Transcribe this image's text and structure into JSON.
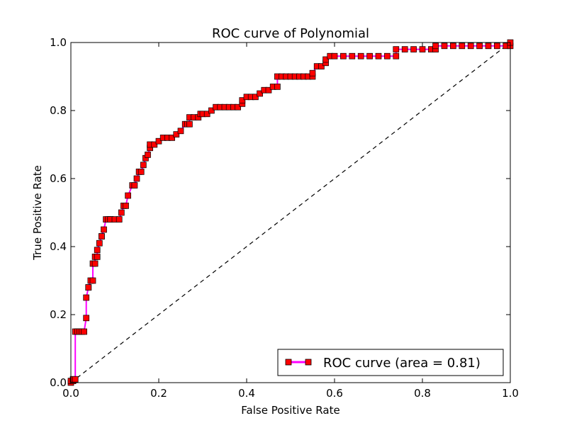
{
  "chart_data": {
    "type": "line",
    "title": "ROC curve of Polynomial",
    "xlabel": "False Positive Rate",
    "ylabel": "True Positive Rate",
    "xlim": [
      0.0,
      1.0
    ],
    "ylim": [
      0.0,
      1.0
    ],
    "xticks": [
      "0.0",
      "0.2",
      "0.4",
      "0.6",
      "0.8",
      "1.0"
    ],
    "yticks": [
      "0.0",
      "0.2",
      "0.4",
      "0.6",
      "0.8",
      "1.0"
    ],
    "grid": false,
    "legend_position": "lower-right",
    "series": [
      {
        "name": "ROC curve (area = 0.81)",
        "line_color": "#ff00ff",
        "marker": "square",
        "marker_color": "#ff0000",
        "x": [
          0.0,
          0.0,
          0.005,
          0.005,
          0.01,
          0.01,
          0.015,
          0.015,
          0.02,
          0.025,
          0.03,
          0.035,
          0.035,
          0.04,
          0.04,
          0.045,
          0.05,
          0.05,
          0.055,
          0.055,
          0.06,
          0.06,
          0.065,
          0.07,
          0.07,
          0.075,
          0.08,
          0.085,
          0.09,
          0.09,
          0.1,
          0.11,
          0.115,
          0.12,
          0.125,
          0.13,
          0.14,
          0.145,
          0.15,
          0.155,
          0.16,
          0.165,
          0.17,
          0.175,
          0.18,
          0.18,
          0.19,
          0.2,
          0.21,
          0.22,
          0.23,
          0.24,
          0.25,
          0.26,
          0.265,
          0.27,
          0.27,
          0.28,
          0.29,
          0.295,
          0.3,
          0.31,
          0.32,
          0.33,
          0.34,
          0.35,
          0.36,
          0.37,
          0.38,
          0.39,
          0.39,
          0.4,
          0.41,
          0.42,
          0.43,
          0.44,
          0.45,
          0.46,
          0.47,
          0.47,
          0.48,
          0.49,
          0.5,
          0.51,
          0.52,
          0.53,
          0.54,
          0.55,
          0.55,
          0.56,
          0.57,
          0.58,
          0.58,
          0.59,
          0.6,
          0.62,
          0.64,
          0.66,
          0.68,
          0.7,
          0.72,
          0.74,
          0.74,
          0.76,
          0.78,
          0.8,
          0.82,
          0.83,
          0.83,
          0.85,
          0.87,
          0.89,
          0.91,
          0.93,
          0.95,
          0.97,
          0.99,
          1.0,
          1.0
        ],
        "y": [
          0.0,
          0.005,
          0.005,
          0.01,
          0.01,
          0.15,
          0.15,
          0.15,
          0.15,
          0.15,
          0.15,
          0.19,
          0.25,
          0.28,
          0.28,
          0.3,
          0.3,
          0.35,
          0.35,
          0.37,
          0.37,
          0.39,
          0.41,
          0.43,
          0.43,
          0.45,
          0.48,
          0.48,
          0.48,
          0.48,
          0.48,
          0.48,
          0.5,
          0.52,
          0.52,
          0.55,
          0.58,
          0.58,
          0.6,
          0.62,
          0.62,
          0.64,
          0.66,
          0.67,
          0.69,
          0.7,
          0.7,
          0.71,
          0.72,
          0.72,
          0.72,
          0.73,
          0.74,
          0.76,
          0.76,
          0.76,
          0.78,
          0.78,
          0.78,
          0.79,
          0.79,
          0.79,
          0.8,
          0.81,
          0.81,
          0.81,
          0.81,
          0.81,
          0.81,
          0.82,
          0.83,
          0.84,
          0.84,
          0.84,
          0.85,
          0.86,
          0.86,
          0.87,
          0.87,
          0.9,
          0.9,
          0.9,
          0.9,
          0.9,
          0.9,
          0.9,
          0.9,
          0.9,
          0.91,
          0.93,
          0.93,
          0.94,
          0.95,
          0.96,
          0.96,
          0.96,
          0.96,
          0.96,
          0.96,
          0.96,
          0.96,
          0.96,
          0.98,
          0.98,
          0.98,
          0.98,
          0.98,
          0.98,
          0.99,
          0.99,
          0.99,
          0.99,
          0.99,
          0.99,
          0.99,
          0.99,
          0.99,
          0.99,
          1.0
        ]
      },
      {
        "name": "",
        "style": "dashed",
        "line_color": "#000000",
        "x": [
          0.0,
          1.0
        ],
        "y": [
          0.0,
          1.0
        ]
      }
    ]
  }
}
